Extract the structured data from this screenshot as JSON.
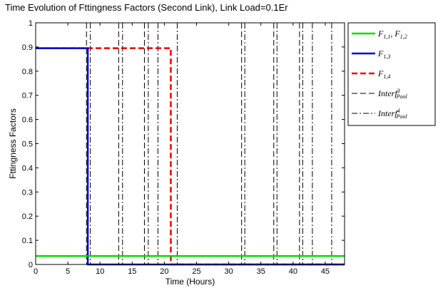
{
  "chart_data": {
    "type": "line",
    "title": "Time Evolution of Fttingness Factors (Second Link), Link Load=0.1Er",
    "xlabel": "Time (Hours)",
    "ylabel": "Fttingness Factors",
    "xlim": [
      0,
      48
    ],
    "ylim": [
      0,
      1
    ],
    "xticks": [
      0,
      5,
      10,
      15,
      20,
      25,
      30,
      35,
      40,
      45
    ],
    "yticks": [
      0,
      0.1,
      0.2,
      0.3,
      0.4,
      0.5,
      0.6,
      0.7,
      0.8,
      0.9,
      1
    ],
    "xtick_labels": [
      "0",
      "5",
      "10",
      "15",
      "20",
      "25",
      "30",
      "35",
      "40",
      "45"
    ],
    "ytick_labels": [
      "0",
      "0.1",
      "0.2",
      "0.3",
      "0.4",
      "0.5",
      "0.6",
      "0.7",
      "0.8",
      "0.9",
      "1"
    ],
    "legend_position": "outside-top-right",
    "grid": false,
    "series": [
      {
        "name": "F1,1, F1,2",
        "legend_main": "F",
        "legend_sub": "1,1",
        "legend_mid": ", F",
        "legend_sub2": "1,2",
        "color": "#00dd00",
        "style": "solid",
        "points": [
          [
            0,
            0.035
          ],
          [
            48,
            0.035
          ]
        ]
      },
      {
        "name": "F1,3",
        "legend_main": "F",
        "legend_sub": "1,3",
        "color": "#0000cc",
        "style": "solid",
        "points": [
          [
            0,
            0.895
          ],
          [
            8.1,
            0.895
          ],
          [
            8.1,
            0
          ],
          [
            48,
            0
          ]
        ]
      },
      {
        "name": "F1,4",
        "legend_main": "F",
        "legend_sub": "1,4",
        "color": "#ee0000",
        "style": "dashed",
        "points": [
          [
            0,
            0.895
          ],
          [
            21,
            0.895
          ],
          [
            21,
            0
          ],
          [
            48,
            0
          ]
        ]
      },
      {
        "name": "Interf3Pool",
        "legend_main": "Interf",
        "legend_sup": "3",
        "legend_sub": "Pool",
        "color": "#000000",
        "style": "dashed",
        "vlines": [
          7.9,
          12.9,
          16.9,
          32.0,
          37.0,
          41.0
        ]
      },
      {
        "name": "Interf4Pool",
        "legend_main": "Interf",
        "legend_sup": "4",
        "legend_sub": "Pool",
        "color": "#000000",
        "style": "dashdot",
        "vlines": [
          8.5,
          13.5,
          17.5,
          19.0,
          22.0,
          32.5,
          37.5,
          41.5,
          43.0,
          46.0
        ]
      }
    ]
  }
}
